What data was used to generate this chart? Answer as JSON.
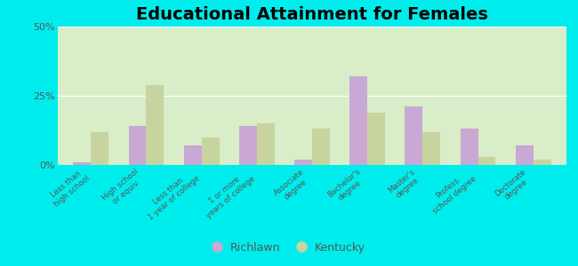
{
  "title": "Educational Attainment for Females",
  "categories": [
    "Less than\nhigh school",
    "High school\nor equiv.",
    "Less than\n1 year of college",
    "1 or more\nyears of college",
    "Associate\ndegree",
    "Bachelor's\ndegree",
    "Master's\ndegree",
    "Profess.\nschool degree",
    "Doctorate\ndegree"
  ],
  "richlawn": [
    1.0,
    14.0,
    7.0,
    14.0,
    2.0,
    32.0,
    21.0,
    13.0,
    7.0
  ],
  "kentucky": [
    12.0,
    29.0,
    10.0,
    15.0,
    13.0,
    19.0,
    12.0,
    3.0,
    2.0
  ],
  "richlawn_color": "#c9a8d4",
  "kentucky_color": "#c8d4a0",
  "background_color": "#d8edc8",
  "outer_background": "#00eded",
  "title_fontsize": 14,
  "ylabel_ticks": [
    "0%",
    "25%",
    "50%"
  ],
  "ylim": [
    0,
    50
  ],
  "yticks": [
    0,
    25,
    50
  ],
  "bar_width": 0.32,
  "legend_richlawn": "Richlawn",
  "legend_kentucky": "Kentucky"
}
